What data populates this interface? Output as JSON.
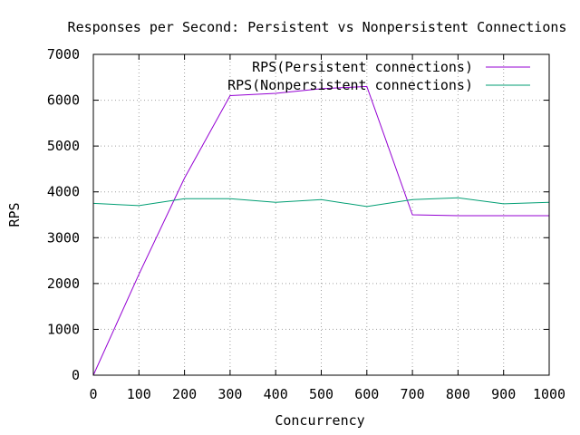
{
  "chart_data": {
    "type": "line",
    "title": "Responses per Second: Persistent vs Nonpersistent Connections",
    "xlabel": "Concurrency",
    "ylabel": "RPS",
    "xlim": [
      0,
      1000
    ],
    "ylim": [
      0,
      7000
    ],
    "xticks": [
      0,
      100,
      200,
      300,
      400,
      500,
      600,
      700,
      800,
      900,
      1000
    ],
    "yticks": [
      0,
      1000,
      2000,
      3000,
      4000,
      5000,
      6000,
      7000
    ],
    "grid": true,
    "legend_position": "top-right",
    "series": [
      {
        "name": "RPS(Persistent connections)",
        "color": "#9400d3",
        "x": [
          0,
          100,
          200,
          300,
          400,
          500,
          600,
          700,
          800,
          900,
          1000
        ],
        "values": [
          0,
          2200,
          4300,
          6100,
          6150,
          6250,
          6300,
          3500,
          3480,
          3480,
          3480
        ]
      },
      {
        "name": "RPS(Nonpersistent connections)",
        "color": "#009e73",
        "x": [
          0,
          100,
          200,
          300,
          400,
          500,
          600,
          700,
          800,
          900,
          1000
        ],
        "values": [
          3750,
          3700,
          3850,
          3850,
          3770,
          3830,
          3680,
          3830,
          3870,
          3740,
          3770
        ]
      }
    ]
  }
}
